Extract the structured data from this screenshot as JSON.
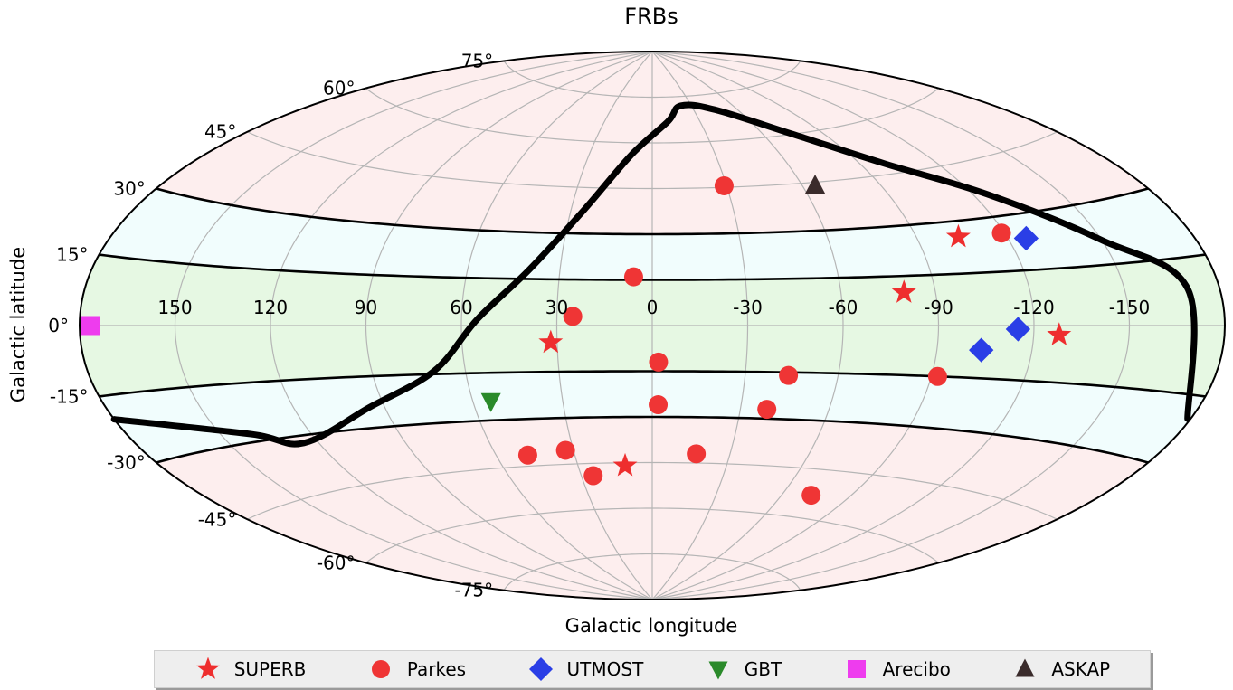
{
  "chart_data": {
    "type": "scatter",
    "projection": "aitoff",
    "title": "FRBs",
    "xlabel": "Galactic longitude",
    "ylabel": "Galactic latitude",
    "xlim": [
      180,
      -180
    ],
    "ylim": [
      -90,
      90
    ],
    "grid": true,
    "legend_position": "bottom",
    "x_ticks": [
      "150",
      "120",
      "90",
      "60",
      "30",
      "0",
      "-30",
      "-60",
      "-90",
      "-120",
      "-150"
    ],
    "y_ticks": [
      "75°",
      "60°",
      "45°",
      "30°",
      "15°",
      "0°",
      "-15°",
      "-30°",
      "-45°",
      "-60°",
      "-75°"
    ],
    "latitude_bands": [
      {
        "range": [
          -90,
          -30
        ],
        "color": "#fdeeee"
      },
      {
        "range": [
          -30,
          -15
        ],
        "color": "#f1fdfd"
      },
      {
        "range": [
          -15,
          15
        ],
        "color": "#e6f8e3"
      },
      {
        "range": [
          15,
          30
        ],
        "color": "#f1fdfd"
      },
      {
        "range": [
          30,
          90
        ],
        "color": "#fdeeee"
      }
    ],
    "boundary_latitudes": [
      -30,
      -15,
      15,
      30
    ],
    "series": [
      {
        "name": "SUPERB",
        "marker": "star",
        "color": "#ee2e2e",
        "points": [
          [
            -104,
            25.5
          ],
          [
            -80,
            10
          ],
          [
            -128,
            -2.5
          ],
          [
            32,
            -5.5
          ],
          [
            11,
            -46
          ]
        ]
      },
      {
        "name": "Parkes",
        "marker": "circle",
        "color": "#ef3535",
        "points": [
          [
            -29,
            45.5
          ],
          [
            -119,
            25.5
          ],
          [
            6,
            16
          ],
          [
            25,
            3
          ],
          [
            -2,
            -12
          ],
          [
            -44,
            -16
          ],
          [
            -92,
            -15
          ],
          [
            -2,
            -26
          ],
          [
            -39,
            -27
          ],
          [
            -17,
            -42
          ],
          [
            33,
            -40.5
          ],
          [
            48,
            -41.5
          ],
          [
            25,
            -49
          ],
          [
            -73,
            -53
          ]
        ]
      },
      {
        "name": "UTMOST",
        "marker": "diamond",
        "color": "#2a3ee6",
        "points": [
          [
            -126,
            23.5
          ],
          [
            -115,
            -1
          ],
          [
            -104,
            -7
          ]
        ]
      },
      {
        "name": "GBT",
        "marker": "triangle-down",
        "color": "#2a8a2a",
        "points": [
          [
            54,
            -24
          ]
        ]
      },
      {
        "name": "Arecibo",
        "marker": "square",
        "color": "#ee3cee",
        "points": [
          [
            176.5,
            0
          ]
        ]
      },
      {
        "name": "ASKAP",
        "marker": "triangle-up",
        "color": "#3a2b2b",
        "points": [
          [
            -65,
            44
          ]
        ]
      }
    ],
    "curve": {
      "color": "#000000",
      "points": [
        [
          180,
          -20
        ],
        [
          140,
          -28
        ],
        [
          125,
          -32
        ],
        [
          95,
          -24
        ],
        [
          70,
          -14
        ],
        [
          55,
          2
        ],
        [
          40,
          18
        ],
        [
          25,
          38
        ],
        [
          10,
          56
        ],
        [
          -10,
          67
        ],
        [
          -22,
          72
        ],
        [
          -45,
          70
        ],
        [
          -75,
          60
        ],
        [
          -100,
          48
        ],
        [
          -125,
          36
        ],
        [
          -150,
          21
        ],
        [
          -170,
          8
        ],
        [
          -179,
          -20
        ]
      ]
    }
  },
  "legend": {
    "items": [
      {
        "label": "SUPERB",
        "marker": "star",
        "color": "#ee2e2e"
      },
      {
        "label": "Parkes",
        "marker": "circle",
        "color": "#ef3535"
      },
      {
        "label": "UTMOST",
        "marker": "diamond",
        "color": "#2a3ee6"
      },
      {
        "label": "GBT",
        "marker": "triangle-down",
        "color": "#2a8a2a"
      },
      {
        "label": "Arecibo",
        "marker": "square",
        "color": "#ee3cee"
      },
      {
        "label": "ASKAP",
        "marker": "triangle-up",
        "color": "#3a2b2b"
      }
    ]
  }
}
